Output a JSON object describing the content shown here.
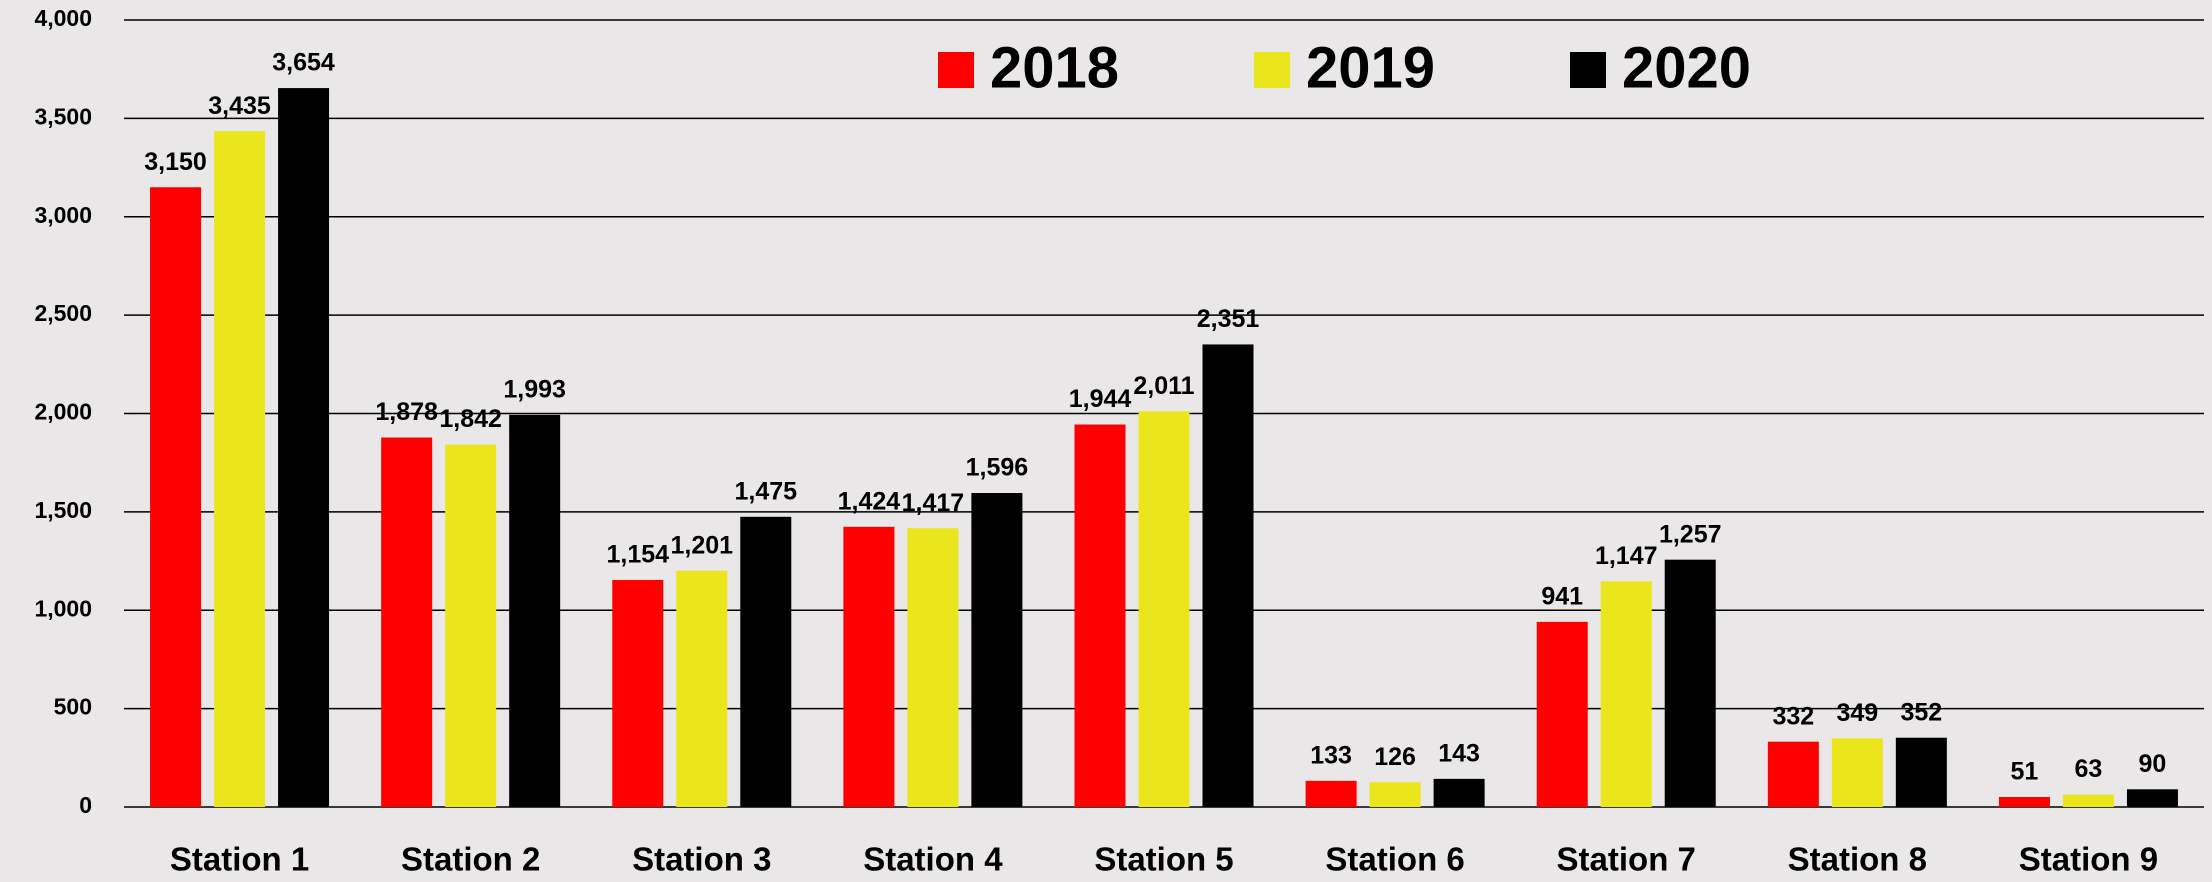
{
  "chart_data": {
    "type": "bar",
    "categories": [
      "Station 1",
      "Station 2",
      "Station 3",
      "Station 4",
      "Station 5",
      "Station 6",
      "Station 7",
      "Station 8",
      "Station 9"
    ],
    "series": [
      {
        "name": "2018",
        "color": "#ff0000",
        "values": [
          3150,
          1878,
          1154,
          1424,
          1944,
          133,
          941,
          332,
          51
        ],
        "value_labels": [
          "3,150",
          "1,878",
          "1,154",
          "1,424",
          "1,944",
          "133",
          "941",
          "332",
          "51"
        ]
      },
      {
        "name": "2019",
        "color": "#ebe61c",
        "values": [
          3435,
          1842,
          1201,
          1417,
          2011,
          126,
          1147,
          349,
          63
        ],
        "value_labels": [
          "3,435",
          "1,842",
          "1,201",
          "1,417",
          "2,011",
          "126",
          "1,147",
          "349",
          "63"
        ]
      },
      {
        "name": "2020",
        "color": "#000000",
        "values": [
          3654,
          1993,
          1475,
          1596,
          2351,
          143,
          1257,
          352,
          90
        ],
        "value_labels": [
          "3,654",
          "1,993",
          "1,475",
          "1,596",
          "2,351",
          "143",
          "1,257",
          "352",
          "90"
        ]
      }
    ],
    "ylim": [
      0,
      4000
    ],
    "yticks": [
      0,
      500,
      {
        "value": 1000,
        "label": "1,000"
      },
      {
        "value": 1500,
        "label": "1,500"
      },
      {
        "value": 2000,
        "label": "2,000"
      },
      {
        "value": 2500,
        "label": "2,500"
      },
      {
        "value": 3000,
        "label": "3,000"
      },
      {
        "value": 3500,
        "label": "3,500"
      },
      {
        "value": 4000,
        "label": "4,000"
      }
    ],
    "grid": true,
    "legend": "top"
  }
}
